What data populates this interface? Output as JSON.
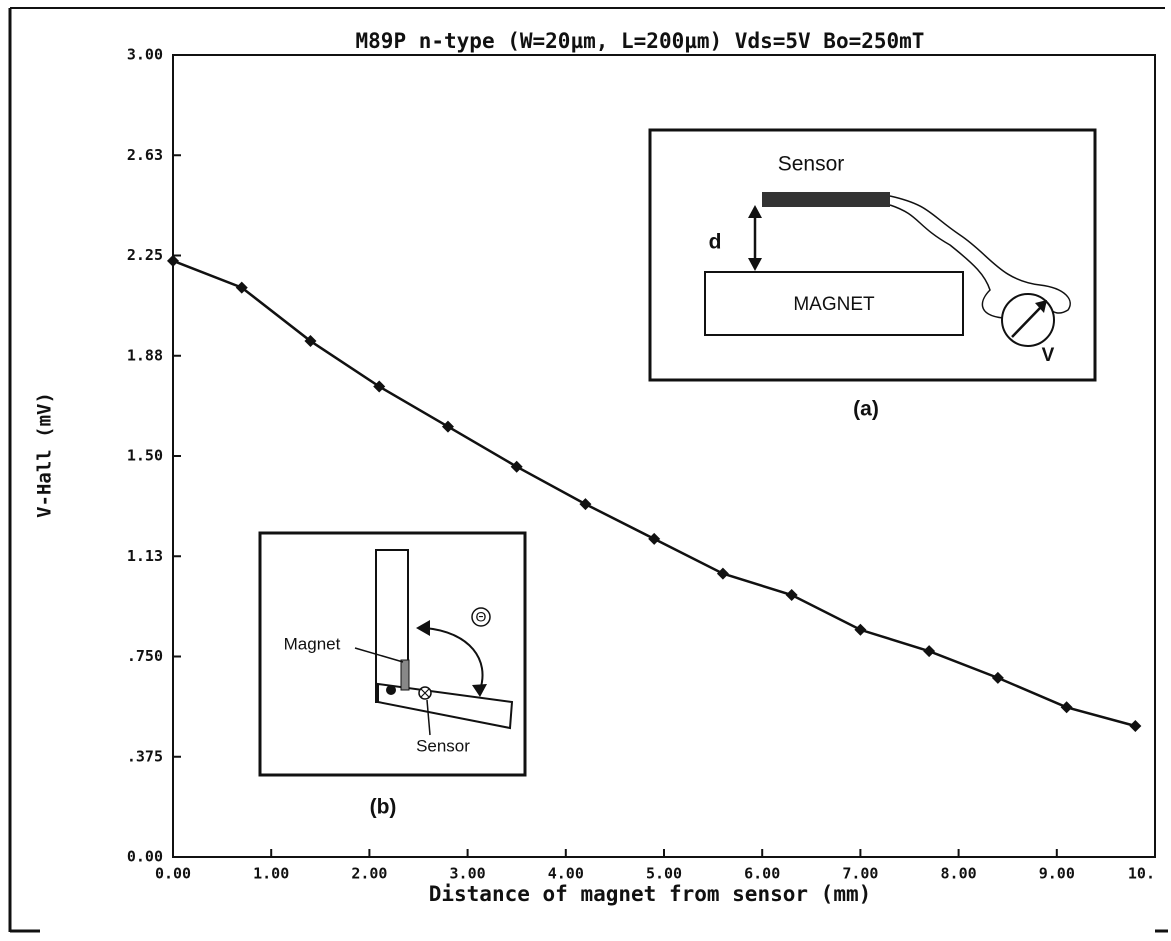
{
  "chart_data": {
    "type": "line",
    "title": "M89P n-type (W=20µm, L=200µm) Vds=5V Bo=250mT",
    "x_label": "Distance of magnet from sensor (mm)",
    "y_label": "V-Hall (mV)",
    "xlim": [
      0,
      10
    ],
    "ylim": [
      0,
      3
    ],
    "xticks": [
      {
        "value": 0,
        "label": "0.00"
      },
      {
        "value": 1,
        "label": "1.00"
      },
      {
        "value": 2,
        "label": "2.00"
      },
      {
        "value": 3,
        "label": "3.00"
      },
      {
        "value": 4,
        "label": "4.00"
      },
      {
        "value": 5,
        "label": "5.00"
      },
      {
        "value": 6,
        "label": "6.00"
      },
      {
        "value": 7,
        "label": "7.00"
      },
      {
        "value": 8,
        "label": "8.00"
      },
      {
        "value": 9,
        "label": "9.00"
      },
      {
        "value": 10,
        "label": "10."
      }
    ],
    "yticks": [
      {
        "value": 0,
        "label": "0.00"
      },
      {
        "value": 0.375,
        "label": ".375"
      },
      {
        "value": 0.75,
        "label": ".750"
      },
      {
        "value": 1.125,
        "label": "1.13"
      },
      {
        "value": 1.5,
        "label": "1.50"
      },
      {
        "value": 1.875,
        "label": "1.88"
      },
      {
        "value": 2.25,
        "label": "2.25"
      },
      {
        "value": 2.625,
        "label": "2.63"
      },
      {
        "value": 3,
        "label": "3.00"
      }
    ],
    "grid": false,
    "color": "#111111",
    "x": [
      0,
      0.7,
      1.4,
      2.1,
      2.8,
      3.5,
      4.2,
      4.9,
      5.6,
      6.3,
      7.0,
      7.7,
      8.4,
      9.1,
      9.8
    ],
    "values": [
      2.23,
      2.13,
      1.93,
      1.76,
      1.61,
      1.46,
      1.32,
      1.19,
      1.06,
      0.98,
      0.85,
      0.77,
      0.67,
      0.56,
      0.49
    ]
  },
  "inset_a": {
    "sensor": "Sensor",
    "distance": "d",
    "magnet": "MAGNET",
    "voltmeter": "V",
    "caption": "(a)"
  },
  "inset_b": {
    "magnet": "Magnet",
    "sensor": "Sensor",
    "angle": "Θ",
    "caption": "(b)"
  }
}
